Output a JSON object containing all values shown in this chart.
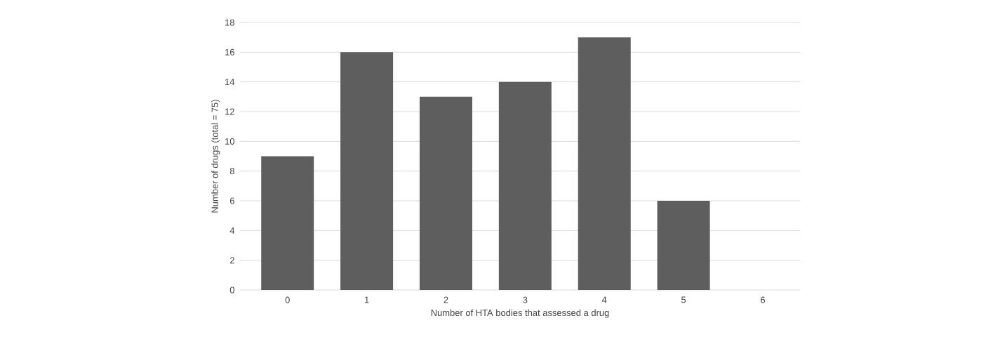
{
  "chart_data": {
    "type": "bar",
    "xlabel": "Number of HTA bodies that assessed a drug",
    "ylabel": "Number of drugs (total = 75)",
    "categories": [
      "0",
      "1",
      "2",
      "3",
      "4",
      "5",
      "6"
    ],
    "values": [
      9,
      16,
      13,
      14,
      17,
      6,
      0
    ],
    "color": "#5e5e5e",
    "ylim": [
      0,
      18
    ],
    "yticks": [
      0,
      2,
      4,
      6,
      8,
      10,
      12,
      14,
      16,
      18
    ],
    "grid": "y"
  }
}
